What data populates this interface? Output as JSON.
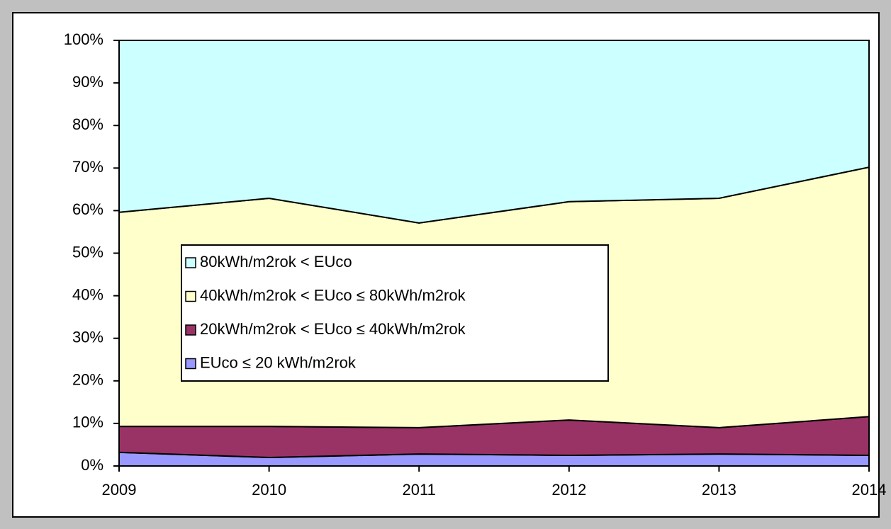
{
  "chart_data": {
    "type": "stacked_area",
    "x": [
      2009,
      2010,
      2011,
      2012,
      2013,
      2014
    ],
    "xlim": [
      2009,
      2014
    ],
    "xticks": [
      2009,
      2010,
      2011,
      2012,
      2013,
      2014
    ],
    "ylim": [
      0,
      100
    ],
    "yticks": [
      {
        "value": 0,
        "label": "0%"
      },
      {
        "value": 10,
        "label": "10%"
      },
      {
        "value": 20,
        "label": "20%"
      },
      {
        "value": 30,
        "label": "30%"
      },
      {
        "value": 40,
        "label": "40%"
      },
      {
        "value": 50,
        "label": "50%"
      },
      {
        "value": 60,
        "label": "60%"
      },
      {
        "value": 70,
        "label": "70%"
      },
      {
        "value": 80,
        "label": "80%"
      },
      {
        "value": 90,
        "label": "90%"
      },
      {
        "value": 100,
        "label": "100%"
      }
    ],
    "series": [
      {
        "name": "EUco ≤ 20 kWh/m2rok",
        "color": "#9999ff",
        "values": [
          3.2,
          2.0,
          2.8,
          2.5,
          2.8,
          2.5
        ]
      },
      {
        "name": "20kWh/m2rok < EUco ≤ 40kWh/m2rok",
        "color": "#993366",
        "values": [
          6.1,
          7.3,
          6.2,
          8.3,
          6.2,
          9.1
        ]
      },
      {
        "name": "40kWh/m2rok < EUco ≤ 80kWh/m2rok",
        "color": "#ffffcc",
        "values": [
          50.3,
          53.6,
          48.1,
          51.3,
          53.9,
          58.6
        ]
      },
      {
        "name": "80kWh/m2rok < EUco",
        "color": "#ccffff",
        "values": [
          40.4,
          37.1,
          42.9,
          37.9,
          37.1,
          29.8
        ]
      }
    ],
    "legend": "center-left"
  }
}
